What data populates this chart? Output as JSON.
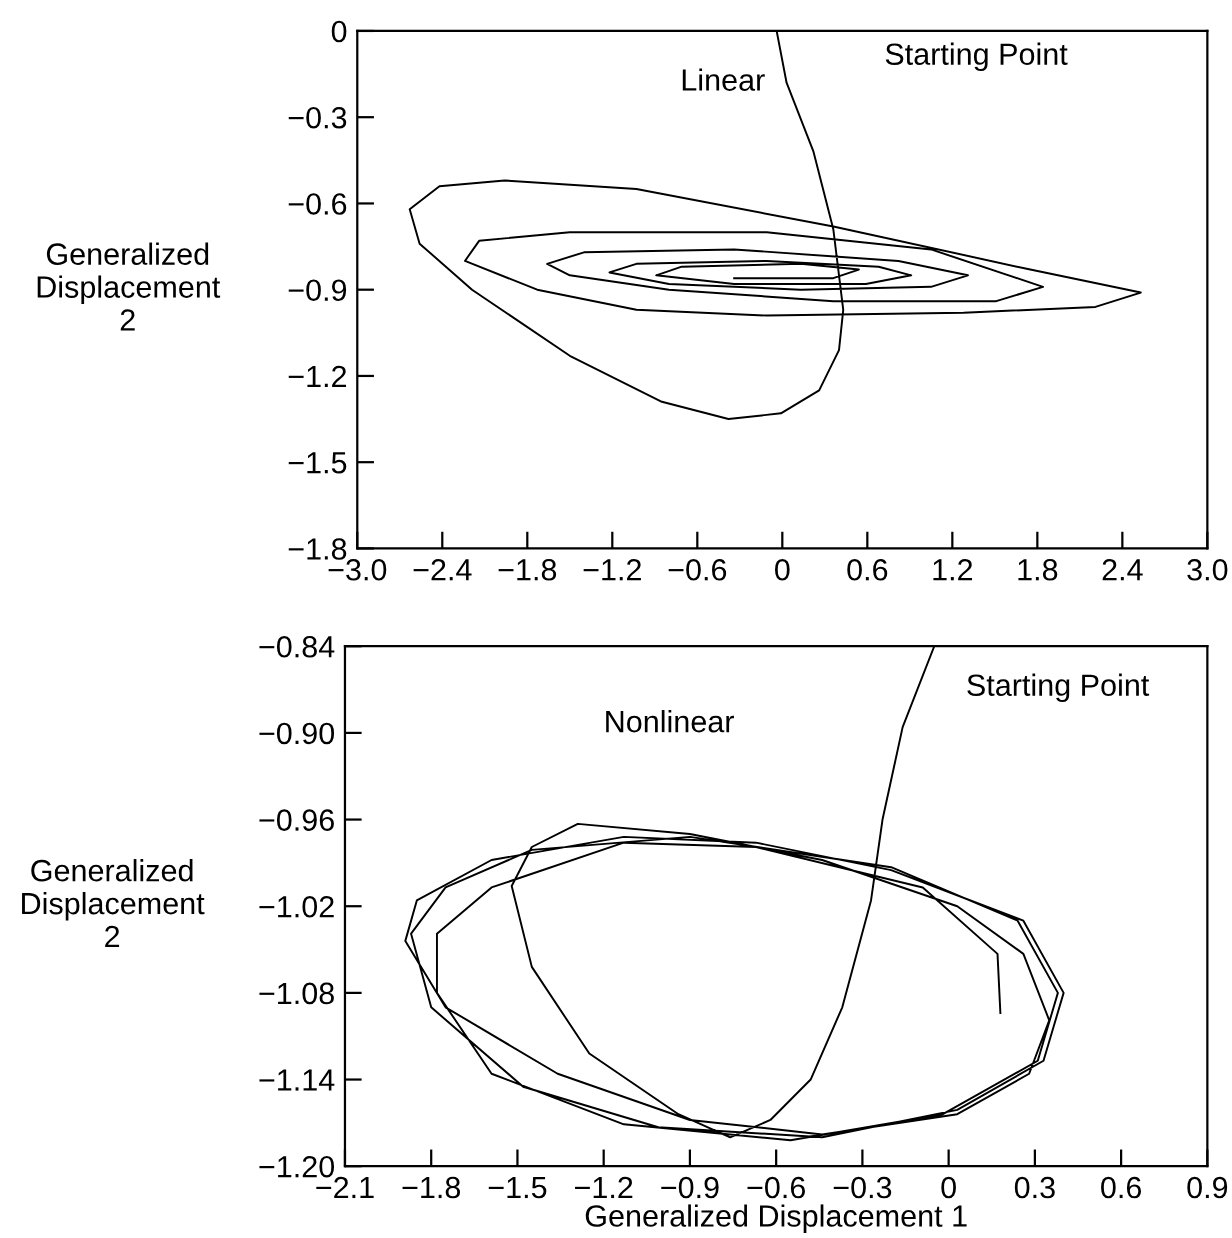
{
  "chart_data": [
    {
      "type": "line",
      "ylabel": "Generalized\nDisplacement\n2",
      "annotations": [
        "Linear",
        "Starting Point"
      ],
      "grid": false,
      "legend": false,
      "tick_labels": "xy",
      "xlim": [
        -3.0,
        3.0
      ],
      "ylim": [
        -1.8,
        0
      ],
      "xticks": [
        {
          "value": -3.0,
          "label": "−3.0"
        },
        {
          "value": -2.4,
          "label": "−2.4"
        },
        {
          "value": -1.8,
          "label": "−1.8"
        },
        {
          "value": -1.2,
          "label": "−1.2"
        },
        {
          "value": -0.6,
          "label": "−0.6"
        },
        {
          "value": 0,
          "label": "0"
        },
        {
          "value": 0.6,
          "label": "0.6"
        },
        {
          "value": 1.2,
          "label": "1.2"
        },
        {
          "value": 1.8,
          "label": "1.8"
        },
        {
          "value": 2.4,
          "label": "2.4"
        },
        {
          "value": 3.0,
          "label": "3.0"
        }
      ],
      "yticks": [
        {
          "value": 0,
          "label": "0"
        },
        {
          "value": -0.3,
          "label": "−0.3"
        },
        {
          "value": -0.6,
          "label": "−0.6"
        },
        {
          "value": -0.9,
          "label": "−0.9"
        },
        {
          "value": -1.2,
          "label": "−1.2"
        },
        {
          "value": -1.5,
          "label": "−1.5"
        },
        {
          "value": -1.8,
          "label": "−1.8"
        }
      ],
      "series": [
        {
          "color": "#000000",
          "x": [
            -0.04,
            0.03,
            0.22,
            0.36,
            0.43,
            0.4,
            0.26,
            -0.01,
            -0.38,
            -0.85,
            -1.5,
            -2.19,
            -2.56,
            -2.63,
            -2.42,
            -1.96,
            -1.03,
            0.36,
            1.75,
            2.53,
            2.21,
            1.28,
            -0.11,
            -1.03,
            -1.73,
            -2.24,
            -2.14,
            -1.5,
            -0.11,
            1.05,
            1.84,
            1.51,
            0.36,
            -0.8,
            -1.5,
            -1.66,
            -1.4,
            -0.34,
            0.82,
            1.31,
            1.05,
            0.13,
            -0.8,
            -1.22,
            -1.03,
            -0.11,
            0.68,
            0.91,
            0.59,
            -0.34,
            -0.89,
            -0.71,
            0.13,
            0.54,
            0.36,
            -0.34
          ],
          "values": [
            0,
            -0.18,
            -0.42,
            -0.69,
            -0.97,
            -1.11,
            -1.25,
            -1.33,
            -1.35,
            -1.29,
            -1.13,
            -0.9,
            -0.74,
            -0.62,
            -0.54,
            -0.52,
            -0.55,
            -0.68,
            -0.83,
            -0.91,
            -0.96,
            -0.98,
            -0.99,
            -0.97,
            -0.9,
            -0.8,
            -0.73,
            -0.7,
            -0.7,
            -0.76,
            -0.89,
            -0.94,
            -0.94,
            -0.9,
            -0.85,
            -0.81,
            -0.77,
            -0.76,
            -0.8,
            -0.85,
            -0.89,
            -0.9,
            -0.88,
            -0.84,
            -0.81,
            -0.8,
            -0.82,
            -0.85,
            -0.88,
            -0.88,
            -0.85,
            -0.82,
            -0.81,
            -0.83,
            -0.86,
            -0.86
          ]
        }
      ]
    },
    {
      "type": "line",
      "xlabel": "Generalized Displacement 1",
      "ylabel": "Generalized\nDisplacement\n2",
      "annotations": [
        "Nonlinear",
        "Starting Point"
      ],
      "grid": false,
      "legend": false,
      "xlim": [
        -2.1,
        0.9
      ],
      "ylim": [
        -1.2,
        -0.84
      ],
      "xticks": [
        {
          "value": -2.1,
          "label": "−2.1"
        },
        {
          "value": -1.8,
          "label": "−1.8"
        },
        {
          "value": -1.5,
          "label": "−1.5"
        },
        {
          "value": -1.2,
          "label": "−1.2"
        },
        {
          "value": -0.9,
          "label": "−0.9"
        },
        {
          "value": -0.6,
          "label": "−0.6"
        },
        {
          "value": -0.3,
          "label": "−0.3"
        },
        {
          "value": 0,
          "label": "0"
        },
        {
          "value": 0.3,
          "label": "0.3"
        },
        {
          "value": 0.6,
          "label": "0.6"
        },
        {
          "value": 0.9,
          "label": "0.9"
        }
      ],
      "yticks": [
        {
          "value": -0.84,
          "label": "−0.84"
        },
        {
          "value": -0.9,
          "label": "−0.90"
        },
        {
          "value": -0.96,
          "label": "−0.96"
        },
        {
          "value": -1.02,
          "label": "−1.02"
        },
        {
          "value": -1.08,
          "label": "−1.08"
        },
        {
          "value": -1.14,
          "label": "−1.14"
        },
        {
          "value": -1.2,
          "label": "−1.20"
        }
      ],
      "series": [
        {
          "color": "#000000",
          "x": [
            -0.05,
            -0.16,
            -0.23,
            -0.27,
            -0.37,
            -0.48,
            -0.62,
            -0.76,
            -0.94,
            -1.25,
            -1.45,
            -1.52,
            -1.45,
            -1.29,
            -0.9,
            -0.44,
            0.03,
            0.26,
            0.35,
            0.28,
            0.03,
            -0.44,
            -0.9,
            -1.36,
            -1.75,
            -1.89,
            -1.85,
            -1.59,
            -1.13,
            -0.67,
            -0.2,
            0.26,
            0.4,
            0.33,
            0.03,
            -0.44,
            -1.01,
            -1.48,
            -1.8,
            -1.87,
            -1.75,
            -1.45,
            -0.9,
            -0.2,
            0.24,
            0.38,
            0.31,
            -0.02,
            -0.55,
            -1.13,
            -1.59,
            -1.78,
            -1.78,
            -1.59,
            -1.13,
            -0.67,
            -0.09,
            0.17,
            0.18
          ],
          "values": [
            -0.84,
            -0.896,
            -0.96,
            -1.016,
            -1.09,
            -1.14,
            -1.168,
            -1.18,
            -1.164,
            -1.122,
            -1.062,
            -1.006,
            -0.979,
            -0.963,
            -0.97,
            -0.988,
            -1.02,
            -1.053,
            -1.099,
            -1.136,
            -1.164,
            -1.178,
            -1.168,
            -1.136,
            -1.09,
            -1.044,
            -1.016,
            -0.988,
            -0.972,
            -0.976,
            -0.995,
            -1.03,
            -1.08,
            -1.127,
            -1.161,
            -1.18,
            -1.173,
            -1.145,
            -1.09,
            -1.039,
            -1.007,
            -0.981,
            -0.972,
            -0.993,
            -1.03,
            -1.08,
            -1.127,
            -1.164,
            -1.182,
            -1.171,
            -1.136,
            -1.08,
            -1.039,
            -1.007,
            -0.976,
            -0.979,
            -1.007,
            -1.053,
            -1.094
          ]
        }
      ]
    }
  ]
}
